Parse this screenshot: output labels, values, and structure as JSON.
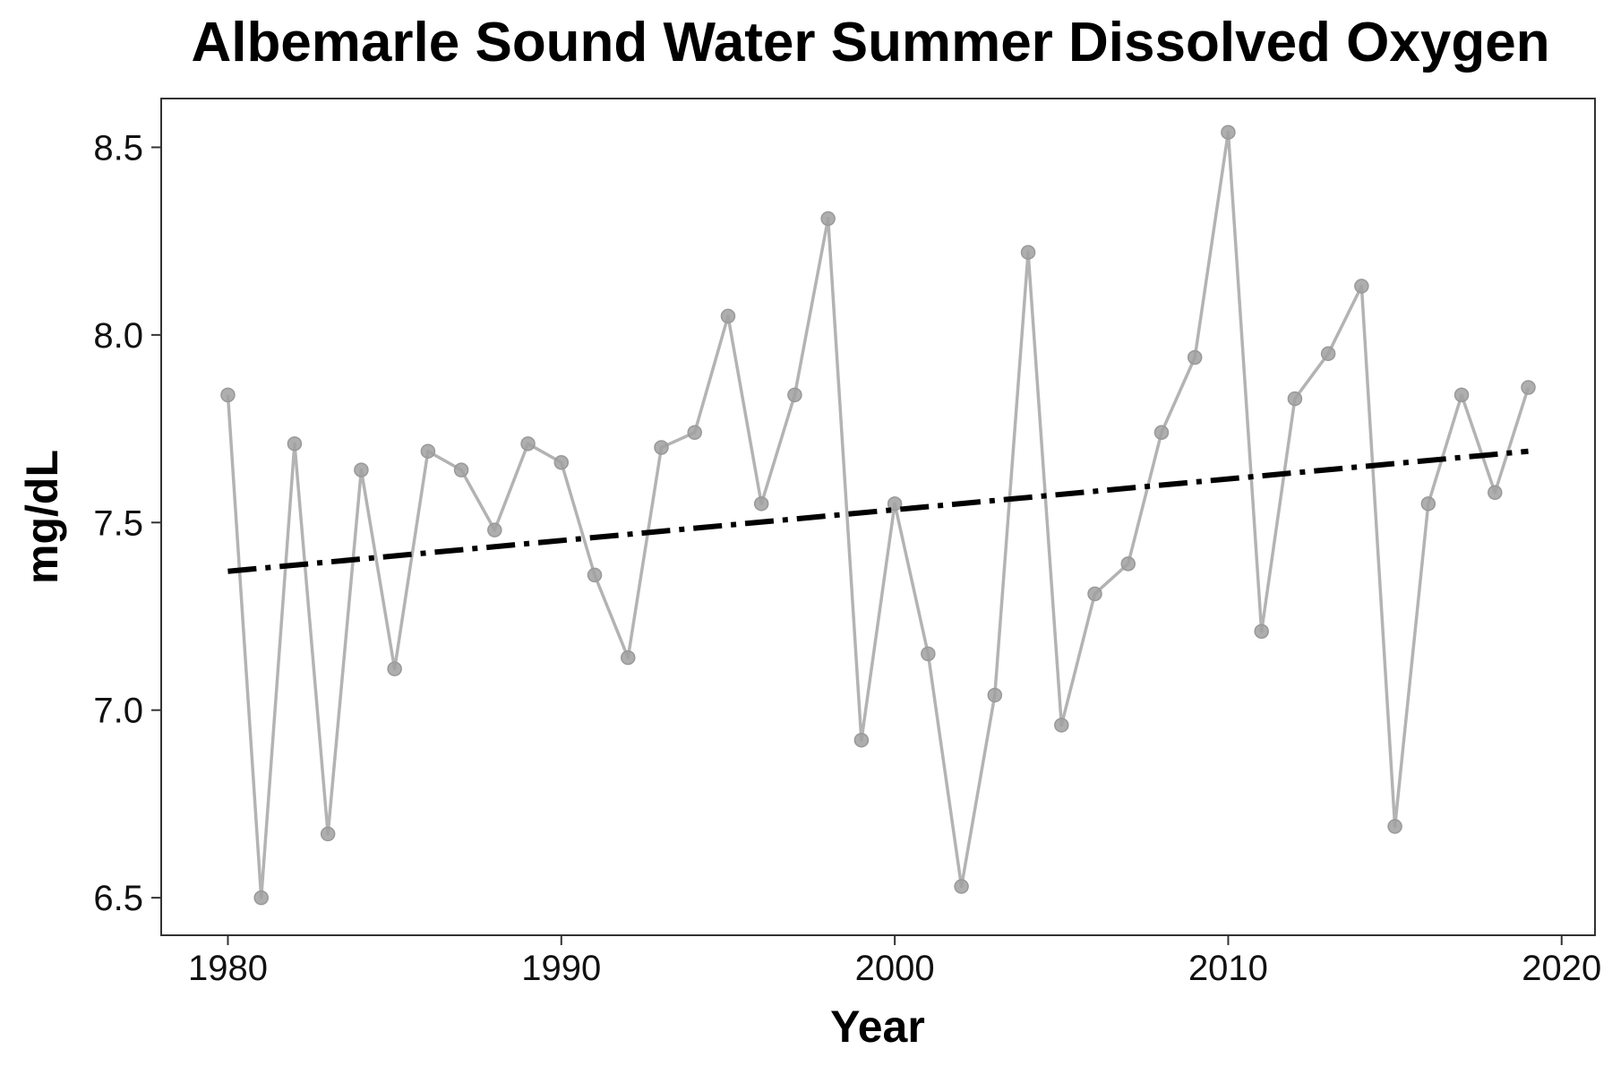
{
  "chart_data": {
    "type": "line",
    "title": "Albemarle Sound Water Summer Dissolved Oxygen",
    "xlabel": "Year",
    "ylabel": "mg/dL",
    "xlim": [
      1978,
      2021
    ],
    "ylim": [
      6.4,
      8.63
    ],
    "x_ticks": [
      1980,
      1990,
      2000,
      2010,
      2020
    ],
    "x_tick_labels": [
      "1980",
      "1990",
      "2000",
      "2010",
      "2020"
    ],
    "y_ticks": [
      6.5,
      7.0,
      7.5,
      8.0,
      8.5
    ],
    "y_tick_labels": [
      "6.5",
      "7.0",
      "7.5",
      "8.0",
      "8.5"
    ],
    "grid": false,
    "legend": "none",
    "series": [
      {
        "style": "line-with-points",
        "color": "#b3b3b3",
        "point_color": "#a0a0a0",
        "x": [
          1980,
          1981,
          1982,
          1983,
          1984,
          1985,
          1986,
          1987,
          1988,
          1989,
          1990,
          1991,
          1992,
          1993,
          1994,
          1995,
          1996,
          1997,
          1998,
          1999,
          2000,
          2001,
          2002,
          2003,
          2004,
          2005,
          2006,
          2007,
          2008,
          2009,
          2010,
          2011,
          2012,
          2013,
          2014,
          2015,
          2016,
          2017,
          2018,
          2019
        ],
        "y": [
          7.84,
          6.5,
          7.71,
          6.67,
          7.64,
          7.11,
          7.69,
          7.64,
          7.48,
          7.71,
          7.66,
          7.36,
          7.14,
          7.7,
          7.74,
          8.05,
          7.55,
          7.84,
          8.31,
          6.92,
          7.55,
          7.15,
          6.53,
          7.04,
          8.22,
          6.96,
          7.31,
          7.39,
          7.74,
          7.94,
          8.54,
          7.21,
          7.83,
          7.95,
          8.13,
          6.69,
          7.55,
          7.84,
          7.58,
          7.86
        ]
      },
      {
        "style": "trend-dashdot",
        "color": "#000000",
        "x": [
          1980,
          2019
        ],
        "y": [
          7.37,
          7.69
        ]
      }
    ]
  }
}
